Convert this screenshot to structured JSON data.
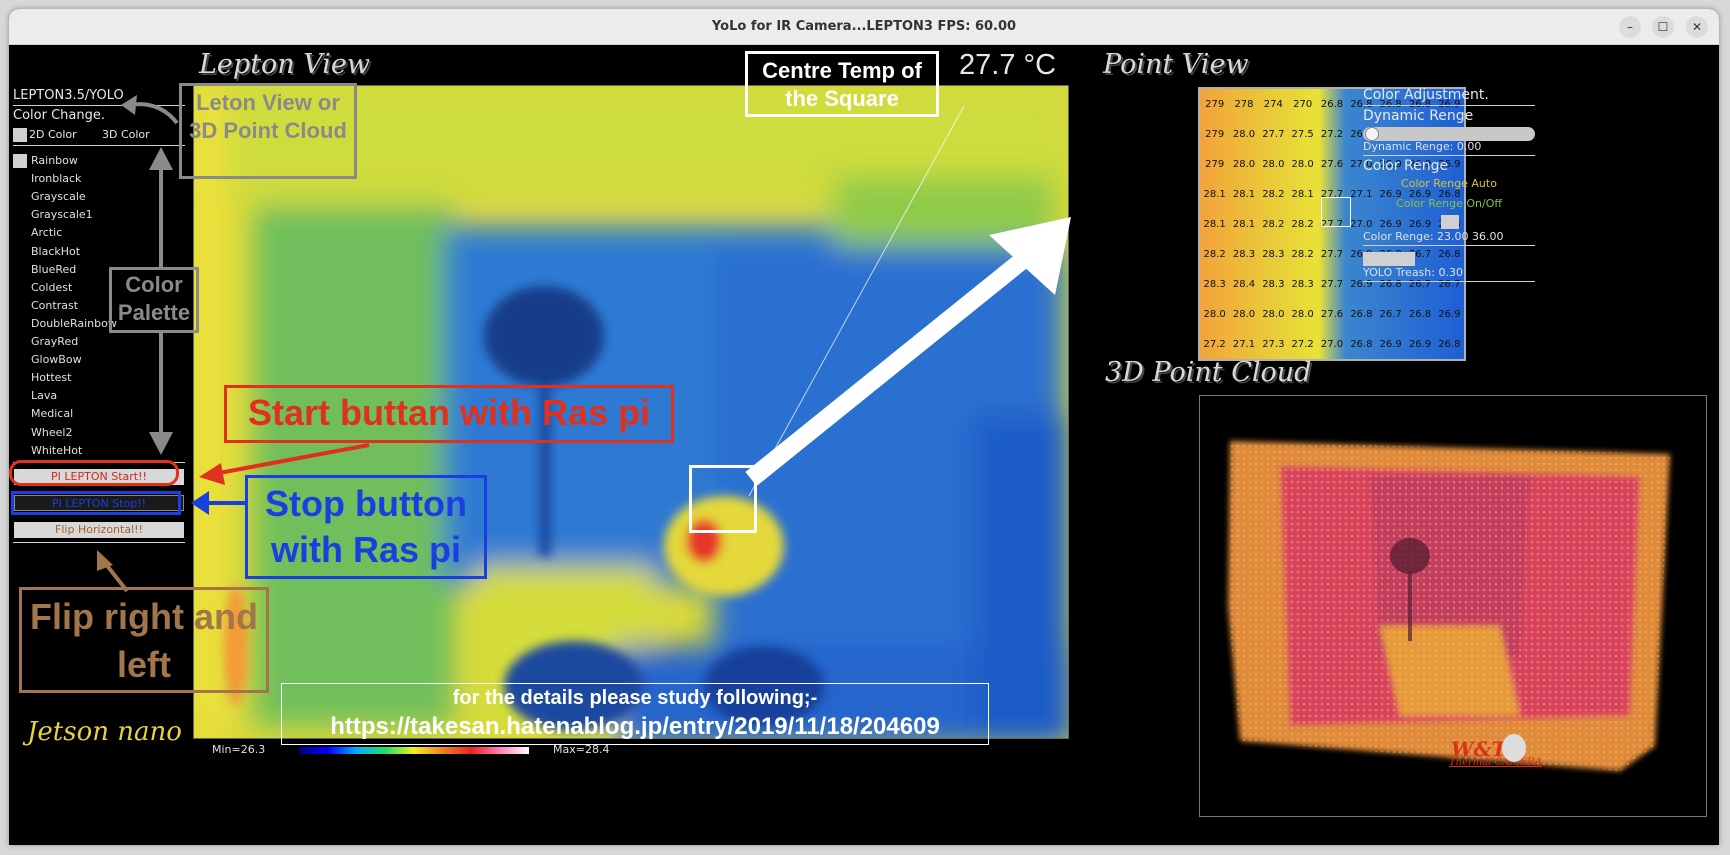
{
  "window": {
    "title": "YoLo for IR Camera...LEPTON3                FPS: 60.00",
    "buttons": [
      "–",
      "☐",
      "✕"
    ]
  },
  "sidebar": {
    "header": "LEPTON3.5/YOLO",
    "color_change": "Color Change.",
    "mode_options": [
      "2D Color",
      "3D Color"
    ],
    "palettes": [
      "Rainbow",
      "Ironblack",
      "Grayscale",
      "Grayscale1",
      "Arctic",
      "BlackHot",
      "BlueRed",
      "Coldest",
      "Contrast",
      "DoubleRainbow",
      "GrayRed",
      "GlowBow",
      "Hottest",
      "Lava",
      "Medical",
      "Wheel2",
      "WhiteHot"
    ],
    "start_button": "PI LEPTON Start!!",
    "stop_button": "PI LEPTON Stop!!",
    "flip_button": "Flip Horizontal!!",
    "footer_logo": "Jetson nano"
  },
  "lepton_view": {
    "title": "Lepton View",
    "centre_temp": "27.7 °C",
    "min_label": "Min=26.3",
    "max_label": "Max=28.4"
  },
  "point_view": {
    "title": "Point View",
    "grid": [
      [
        "279",
        "278",
        "274",
        "270",
        "26.8",
        "26.8",
        "26.8",
        "26.8",
        "26.9"
      ],
      [
        "279",
        "28.0",
        "27.7",
        "27.5",
        "27.2",
        "26.9",
        "27.0",
        "26.9",
        "26.8"
      ],
      [
        "279",
        "28.0",
        "28.0",
        "28.0",
        "27.6",
        "27.0",
        "26.9",
        "26.9",
        "26.9"
      ],
      [
        "28.1",
        "28.1",
        "28.2",
        "28.1",
        "27.7",
        "27.1",
        "26.9",
        "26.9",
        "26.8"
      ],
      [
        "28.1",
        "28.1",
        "28.2",
        "28.2",
        "27.7",
        "27.0",
        "26.9",
        "26.9",
        "26.8"
      ],
      [
        "28.2",
        "28.3",
        "28.3",
        "28.2",
        "27.7",
        "26.9",
        "26.8",
        "26.7",
        "26.8"
      ],
      [
        "28.3",
        "28.4",
        "28.3",
        "28.3",
        "27.7",
        "26.9",
        "26.8",
        "26.7",
        "26.7"
      ],
      [
        "28.0",
        "28.0",
        "28.0",
        "28.0",
        "27.6",
        "26.8",
        "26.7",
        "26.8",
        "26.9"
      ],
      [
        "27.2",
        "27.1",
        "27.3",
        "27.2",
        "27.0",
        "26.8",
        "26.9",
        "26.9",
        "26.8"
      ]
    ]
  },
  "point_cloud": {
    "title": "3D Point Cloud"
  },
  "color_adjustment": {
    "title": "Color Adjustment.",
    "dynamic_range": "Dynamic Renge",
    "dynamic_value": "Dynamic Renge: 0.00",
    "color_range": "Color Renge",
    "auto_label": "Color Renge Auto",
    "onoff_label": "Color Renge On/Off",
    "range_value": "Color Renge: 23.00 36.00",
    "yolo_value": "YOLO Treash: 0.30"
  },
  "annotations": {
    "leton_view": "Leton View or 3D Point Cloud",
    "color_palette": "Color Palette",
    "centre_temp_box": "Centre Temp of the Square",
    "start_note": "Start buttan with Ras pi",
    "stop_note": "Stop button with Ras pi",
    "flip_note": "Flip right and left",
    "details_line1": "for the details please study following;-",
    "details_line2": "https://takesan.hatenablog.jp/entry/2019/11/18/204609",
    "logo_line1": "W&T",
    "logo_line2": "Thermal CAMERA"
  },
  "colors": {
    "start_box": "#e0301e",
    "stop_box": "#1a3fe0",
    "flip_box": "#a0764a",
    "leton_box": "#8a8a8a"
  }
}
